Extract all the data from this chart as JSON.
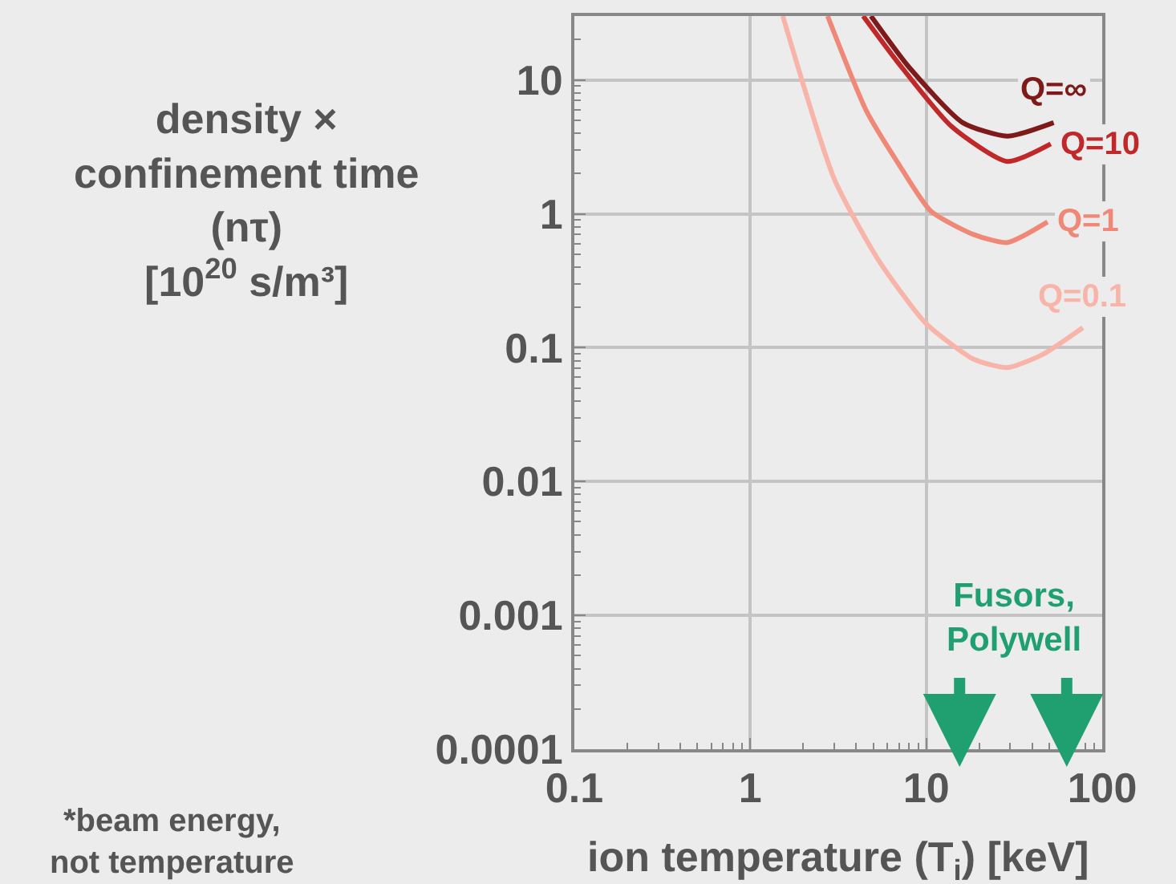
{
  "chart_data": {
    "type": "line",
    "xlabel": "ion temperature (T$_{i}$) [keV]",
    "ylabel": "density ×\nconfinement time\n(nτ)\n[10$^{20}$ s/m³]",
    "log": "xy",
    "grid": true,
    "legend": false,
    "marker": "none",
    "line_style": "solid",
    "xlim": [
      0.1,
      100
    ],
    "xticks": [
      0.1,
      1,
      10,
      100
    ],
    "ylim": [
      0.0001,
      30
    ],
    "yticks": [
      0.0001,
      0.001,
      0.01,
      0.1,
      1,
      10
    ],
    "series": [
      {
        "name": "Q=∞",
        "color": "#7f1a1a",
        "x": [
          4.85,
          8.0,
          16.1,
          28.9,
          53
        ],
        "values": [
          30,
          12.4,
          4.8,
          3.8,
          4.8
        ]
      },
      {
        "name": "Q=10",
        "color": "#c0282a",
        "x": [
          4.38,
          6.9,
          13.9,
          28.9,
          51
        ],
        "values": [
          30,
          13.5,
          4.5,
          2.46,
          3.33
        ]
      },
      {
        "name": "Q=1",
        "color": "#f08878",
        "x": [
          2.75,
          4.56,
          6.9,
          10.6,
          18.6,
          28.9,
          48.9
        ],
        "values": [
          30,
          5.9,
          2.4,
          1.05,
          0.7,
          0.61,
          0.87
        ]
      },
      {
        "name": "Q=0.1",
        "color": "#f8b4a8",
        "x": [
          1.53,
          3.0,
          5.3,
          9.9,
          18.6,
          28.9,
          45.9,
          77.6
        ],
        "values": [
          30,
          1.82,
          0.46,
          0.153,
          0.082,
          0.071,
          0.089,
          0.141
        ]
      }
    ],
    "annotations": [
      "Fusors,\nPolywell",
      "*beam energy,\nnot temperature"
    ]
  }
}
